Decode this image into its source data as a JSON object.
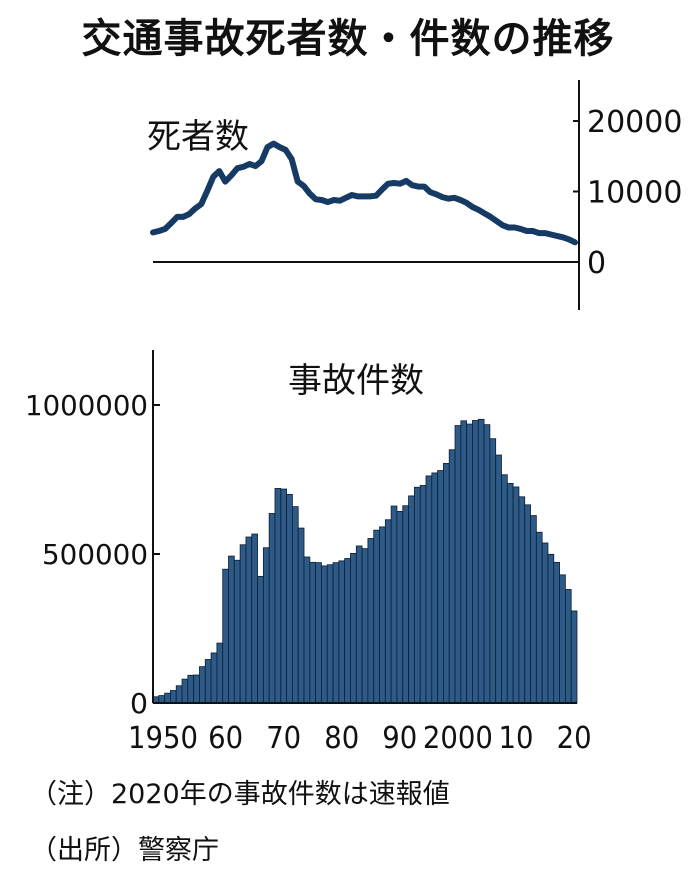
{
  "title": "交通事故死者数・件数の推移",
  "notes": {
    "note": "（注）2020年の事故件数は速報値",
    "source": "（出所）警察庁"
  },
  "colors": {
    "line": "#153a64",
    "bar_fill": "#2d5a87",
    "bar_stroke": "#0d1f33",
    "axis": "#111111"
  },
  "chart_data": [
    {
      "type": "line",
      "title": "死者数",
      "ylim": [
        0,
        25000
      ],
      "yticks": [
        "20000",
        "10000",
        "0"
      ],
      "ytick_values": [
        20000,
        10000,
        0
      ],
      "y_axis_side": "right",
      "x": [
        1950,
        1951,
        1952,
        1953,
        1954,
        1955,
        1956,
        1957,
        1958,
        1959,
        1960,
        1961,
        1962,
        1963,
        1964,
        1965,
        1966,
        1967,
        1968,
        1969,
        1970,
        1971,
        1972,
        1973,
        1974,
        1975,
        1976,
        1977,
        1978,
        1979,
        1980,
        1981,
        1982,
        1983,
        1984,
        1985,
        1986,
        1987,
        1988,
        1989,
        1990,
        1991,
        1992,
        1993,
        1994,
        1995,
        1996,
        1997,
        1998,
        1999,
        2000,
        2001,
        2002,
        2003,
        2004,
        2005,
        2006,
        2007,
        2008,
        2009,
        2010,
        2011,
        2012,
        2013,
        2014,
        2015,
        2016,
        2017,
        2018,
        2019,
        2020
      ],
      "values": [
        4200,
        4400,
        4700,
        5500,
        6400,
        6400,
        6800,
        7600,
        8200,
        10100,
        12100,
        12900,
        11400,
        12300,
        13300,
        13500,
        13900,
        13600,
        14300,
        16300,
        16800,
        16300,
        15900,
        14600,
        11400,
        10800,
        9700,
        8900,
        8800,
        8500,
        8800,
        8700,
        9100,
        9500,
        9300,
        9300,
        9300,
        9400,
        10300,
        11100,
        11200,
        11100,
        11500,
        10900,
        10700,
        10700,
        9900,
        9600,
        9200,
        9000,
        9100,
        8800,
        8400,
        7800,
        7400,
        6900,
        6400,
        5800,
        5200,
        4900,
        4900,
        4700,
        4400,
        4400,
        4100,
        4100,
        3900,
        3700,
        3500,
        3200,
        2800
      ]
    },
    {
      "type": "bar",
      "title": "事故件数",
      "ylim": [
        0,
        1200000
      ],
      "yticks": [
        "1000000",
        "500000",
        "0"
      ],
      "ytick_values": [
        1000000,
        500000,
        0
      ],
      "xticks": [
        "1950",
        "60",
        "70",
        "80",
        "90",
        "2000",
        "10",
        "20"
      ],
      "xtick_years": [
        1950,
        1960,
        1970,
        1980,
        1990,
        2000,
        2010,
        2020
      ],
      "x": [
        1948,
        1949,
        1950,
        1951,
        1952,
        1953,
        1954,
        1955,
        1956,
        1957,
        1958,
        1959,
        1960,
        1961,
        1962,
        1963,
        1964,
        1965,
        1966,
        1967,
        1968,
        1969,
        1970,
        1971,
        1972,
        1973,
        1974,
        1975,
        1976,
        1977,
        1978,
        1979,
        1980,
        1981,
        1982,
        1983,
        1984,
        1985,
        1986,
        1987,
        1988,
        1989,
        1990,
        1991,
        1992,
        1993,
        1994,
        1995,
        1996,
        1997,
        1998,
        1999,
        2000,
        2001,
        2002,
        2003,
        2004,
        2005,
        2006,
        2007,
        2008,
        2009,
        2010,
        2011,
        2012,
        2013,
        2014,
        2015,
        2016,
        2017,
        2018,
        2019,
        2020
      ],
      "values": [
        21000,
        25000,
        33000,
        42000,
        58000,
        80000,
        93000,
        94000,
        122000,
        146000,
        168000,
        201000,
        449000,
        493000,
        479000,
        531000,
        557000,
        567000,
        425000,
        521000,
        636000,
        720000,
        718000,
        700000,
        659000,
        587000,
        490000,
        472000,
        471000,
        460000,
        464000,
        471000,
        477000,
        485000,
        502000,
        527000,
        518000,
        552000,
        580000,
        591000,
        615000,
        661000,
        643000,
        662000,
        695000,
        724000,
        730000,
        762000,
        772000,
        780000,
        804000,
        850000,
        931000,
        947000,
        936000,
        948000,
        952000,
        934000,
        887000,
        832000,
        766000,
        737000,
        725000,
        692000,
        665000,
        629000,
        573000,
        537000,
        499000,
        472000,
        430000,
        381000,
        309000
      ]
    }
  ]
}
